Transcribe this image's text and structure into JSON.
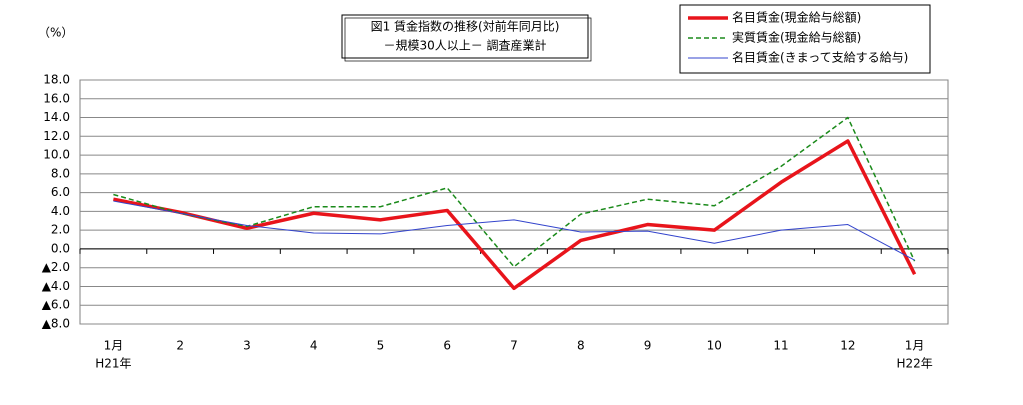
{
  "chart_data": {
    "type": "line",
    "title": [
      "図1  賃金指数の推移(対前年同月比)",
      "－規模30人以上－  調査産業計"
    ],
    "y_unit_label": "（%）",
    "categories": [
      "1月",
      "2",
      "3",
      "4",
      "5",
      "6",
      "7",
      "8",
      "9",
      "10",
      "11",
      "12",
      "1月"
    ],
    "x_sublabels": [
      "H21年",
      null,
      null,
      null,
      null,
      null,
      null,
      null,
      null,
      null,
      null,
      null,
      "H22年"
    ],
    "series": [
      {
        "name": "名目賃金(現金給与総額)",
        "color": "#e8141b",
        "line_width": 3.5,
        "dashed": false,
        "values": [
          5.3,
          3.9,
          2.2,
          3.8,
          3.1,
          4.1,
          -4.2,
          0.9,
          2.6,
          2.0,
          7.1,
          11.5,
          -2.7
        ]
      },
      {
        "name": "実質賃金(現金給与総額)",
        "color": "#1a8a1a",
        "line_width": 1.5,
        "dashed": true,
        "values": [
          5.8,
          3.8,
          2.4,
          4.5,
          4.5,
          6.5,
          -1.9,
          3.7,
          5.3,
          4.6,
          8.8,
          14.0,
          -1.3
        ]
      },
      {
        "name": "名目賃金(きまって支給する給与)",
        "color": "#3344cc",
        "line_width": 1,
        "dashed": false,
        "values": [
          5.1,
          3.8,
          2.5,
          1.7,
          1.6,
          2.5,
          3.1,
          1.8,
          1.9,
          0.6,
          2.0,
          2.6,
          -1.2
        ]
      }
    ],
    "ylim": [
      -8,
      18
    ],
    "yticks": [
      {
        "value": 18,
        "label": "18.0"
      },
      {
        "value": 16,
        "label": "16.0"
      },
      {
        "value": 14,
        "label": "14.0"
      },
      {
        "value": 12,
        "label": "12.0"
      },
      {
        "value": 10,
        "label": "10.0"
      },
      {
        "value": 8,
        "label": "8.0"
      },
      {
        "value": 6,
        "label": "6.0"
      },
      {
        "value": 4,
        "label": "4.0"
      },
      {
        "value": 2,
        "label": "2.0"
      },
      {
        "value": 0,
        "label": "0.0"
      },
      {
        "value": -2,
        "label": "▲2.0"
      },
      {
        "value": -4,
        "label": "▲4.0"
      },
      {
        "value": -6,
        "label": "▲6.0"
      },
      {
        "value": -8,
        "label": "▲8.0"
      }
    ],
    "grid": true
  }
}
